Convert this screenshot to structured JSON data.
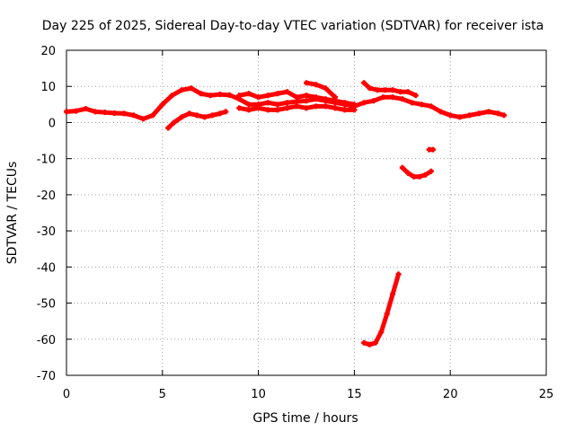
{
  "chart_data": {
    "type": "scatter",
    "title": "Day 225 of 2025, Sidereal Day-to-day VTEC variation (SDTVAR) for receiver ista",
    "xlabel": "GPS time / hours",
    "ylabel": "SDTVAR / TECUs",
    "xlim": [
      0,
      25
    ],
    "ylim": [
      -70,
      20
    ],
    "xticks": [
      "0",
      "5",
      "10",
      "15",
      "20",
      "25"
    ],
    "yticks": [
      "20",
      "10",
      "0",
      "-10",
      "-20",
      "-30",
      "-40",
      "-50",
      "-60",
      "-70"
    ],
    "grid": true,
    "marker_color": "#ff0000",
    "series": [
      {
        "name": "track-main",
        "x": [
          0.0,
          0.5,
          1.0,
          1.5,
          2.0,
          2.5,
          3.0,
          3.5,
          4.0,
          4.5,
          5.0,
          5.5,
          6.0,
          6.5,
          7.0,
          7.5,
          8.0,
          8.5,
          9.0,
          9.5,
          10.0,
          10.5,
          11.0,
          11.5,
          12.0,
          12.5,
          13.0,
          13.5,
          14.0,
          14.5,
          15.0,
          15.5,
          16.0,
          16.5,
          17.0,
          17.5,
          18.0,
          18.5,
          19.0,
          19.5,
          20.0,
          20.5,
          21.0,
          21.5,
          22.0,
          22.5,
          22.8
        ],
        "y": [
          3.0,
          3.2,
          3.8,
          3.0,
          2.8,
          2.6,
          2.5,
          2.0,
          1.0,
          2.0,
          5.0,
          7.5,
          9.0,
          9.5,
          8.0,
          7.5,
          7.8,
          7.6,
          6.5,
          5.0,
          5.0,
          5.5,
          5.0,
          5.5,
          5.8,
          6.0,
          6.5,
          6.0,
          5.5,
          5.0,
          4.5,
          5.5,
          6.0,
          7.0,
          7.0,
          6.5,
          5.5,
          5.0,
          4.5,
          3.0,
          2.0,
          1.5,
          2.0,
          2.5,
          3.0,
          2.5,
          2.0
        ]
      },
      {
        "name": "track-upper-overlap",
        "x": [
          9.0,
          9.5,
          10.0,
          10.5,
          11.0,
          11.5,
          12.0,
          12.5,
          13.0,
          13.5,
          14.0,
          14.5,
          15.0
        ],
        "y": [
          7.5,
          8.0,
          7.0,
          7.5,
          8.0,
          8.5,
          7.0,
          7.5,
          7.0,
          6.5,
          6.0,
          5.5,
          5.0
        ]
      },
      {
        "name": "track-lower-overlap",
        "x": [
          9.0,
          9.5,
          10.0,
          10.5,
          11.0,
          11.5,
          12.0,
          12.5,
          13.0,
          13.5,
          14.0,
          14.5,
          15.0
        ],
        "y": [
          4.0,
          3.5,
          4.0,
          3.5,
          3.5,
          4.0,
          4.5,
          4.0,
          4.5,
          4.5,
          4.0,
          3.5,
          3.5
        ]
      },
      {
        "name": "track-5-8",
        "x": [
          5.3,
          5.6,
          6.0,
          6.4,
          6.8,
          7.2,
          7.6,
          8.0,
          8.3
        ],
        "y": [
          -1.5,
          0.0,
          1.5,
          2.5,
          2.0,
          1.5,
          2.0,
          2.5,
          3.0
        ]
      },
      {
        "name": "track-ramp-13",
        "x": [
          12.5,
          13.0,
          13.5,
          14.0
        ],
        "y": [
          11.0,
          10.5,
          9.5,
          7.0
        ]
      },
      {
        "name": "track-15-18",
        "x": [
          15.5,
          15.8,
          16.2,
          16.6,
          17.0,
          17.4,
          17.8,
          18.2
        ],
        "y": [
          11.0,
          9.5,
          9.0,
          9.0,
          9.0,
          8.5,
          8.5,
          7.5
        ]
      },
      {
        "name": "track-18-19",
        "x": [
          17.5,
          17.8,
          18.1,
          18.4,
          18.7,
          19.0
        ],
        "y": [
          -12.5,
          -14.0,
          -15.0,
          -15.0,
          -14.5,
          -13.5
        ]
      },
      {
        "name": "track-19",
        "x": [
          18.9,
          19.1
        ],
        "y": [
          -7.5,
          -7.5
        ]
      },
      {
        "name": "track-dip",
        "x": [
          15.5,
          15.8,
          16.1,
          16.4,
          16.7,
          17.0,
          17.3
        ],
        "y": [
          -61.0,
          -61.5,
          -61.0,
          -58.0,
          -53.0,
          -47.5,
          -42.0
        ]
      }
    ]
  }
}
